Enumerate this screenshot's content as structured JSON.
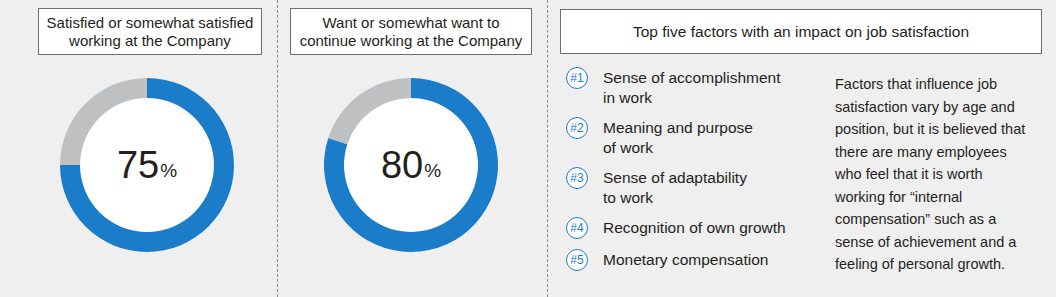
{
  "chart_data": [
    {
      "type": "pie",
      "title": "Satisfied or somewhat satisfied\nworking at the Company",
      "values": [
        75,
        25
      ],
      "value_labels": [
        "75%",
        null
      ],
      "colors": [
        "#1b7dc9",
        "#bfc0c2"
      ]
    },
    {
      "type": "pie",
      "title": "Want or somewhat want to\ncontinue working at the Company",
      "values": [
        80,
        20
      ],
      "value_labels": [
        "80%",
        null
      ],
      "colors": [
        "#1b7dc9",
        "#bfc0c2"
      ]
    }
  ],
  "factors": {
    "title": "Top five factors with an impact on job satisfaction",
    "items": [
      {
        "rank": "#1",
        "text": "Sense of accomplishment\nin work"
      },
      {
        "rank": "#2",
        "text": "Meaning and purpose\nof work"
      },
      {
        "rank": "#3",
        "text": "Sense of adaptability\nto work"
      },
      {
        "rank": "#4",
        "text": "Recognition of own growth"
      },
      {
        "rank": "#5",
        "text": "Monetary compensation"
      }
    ],
    "note": "Factors that influence job\nsatisfaction vary by age and\nposition, but it is believed that\nthere are many employees\nwho feel that it is worth\nworking for “internal\ncompensation” such as a\nsense of achievement and a\nfeeling of personal growth."
  }
}
